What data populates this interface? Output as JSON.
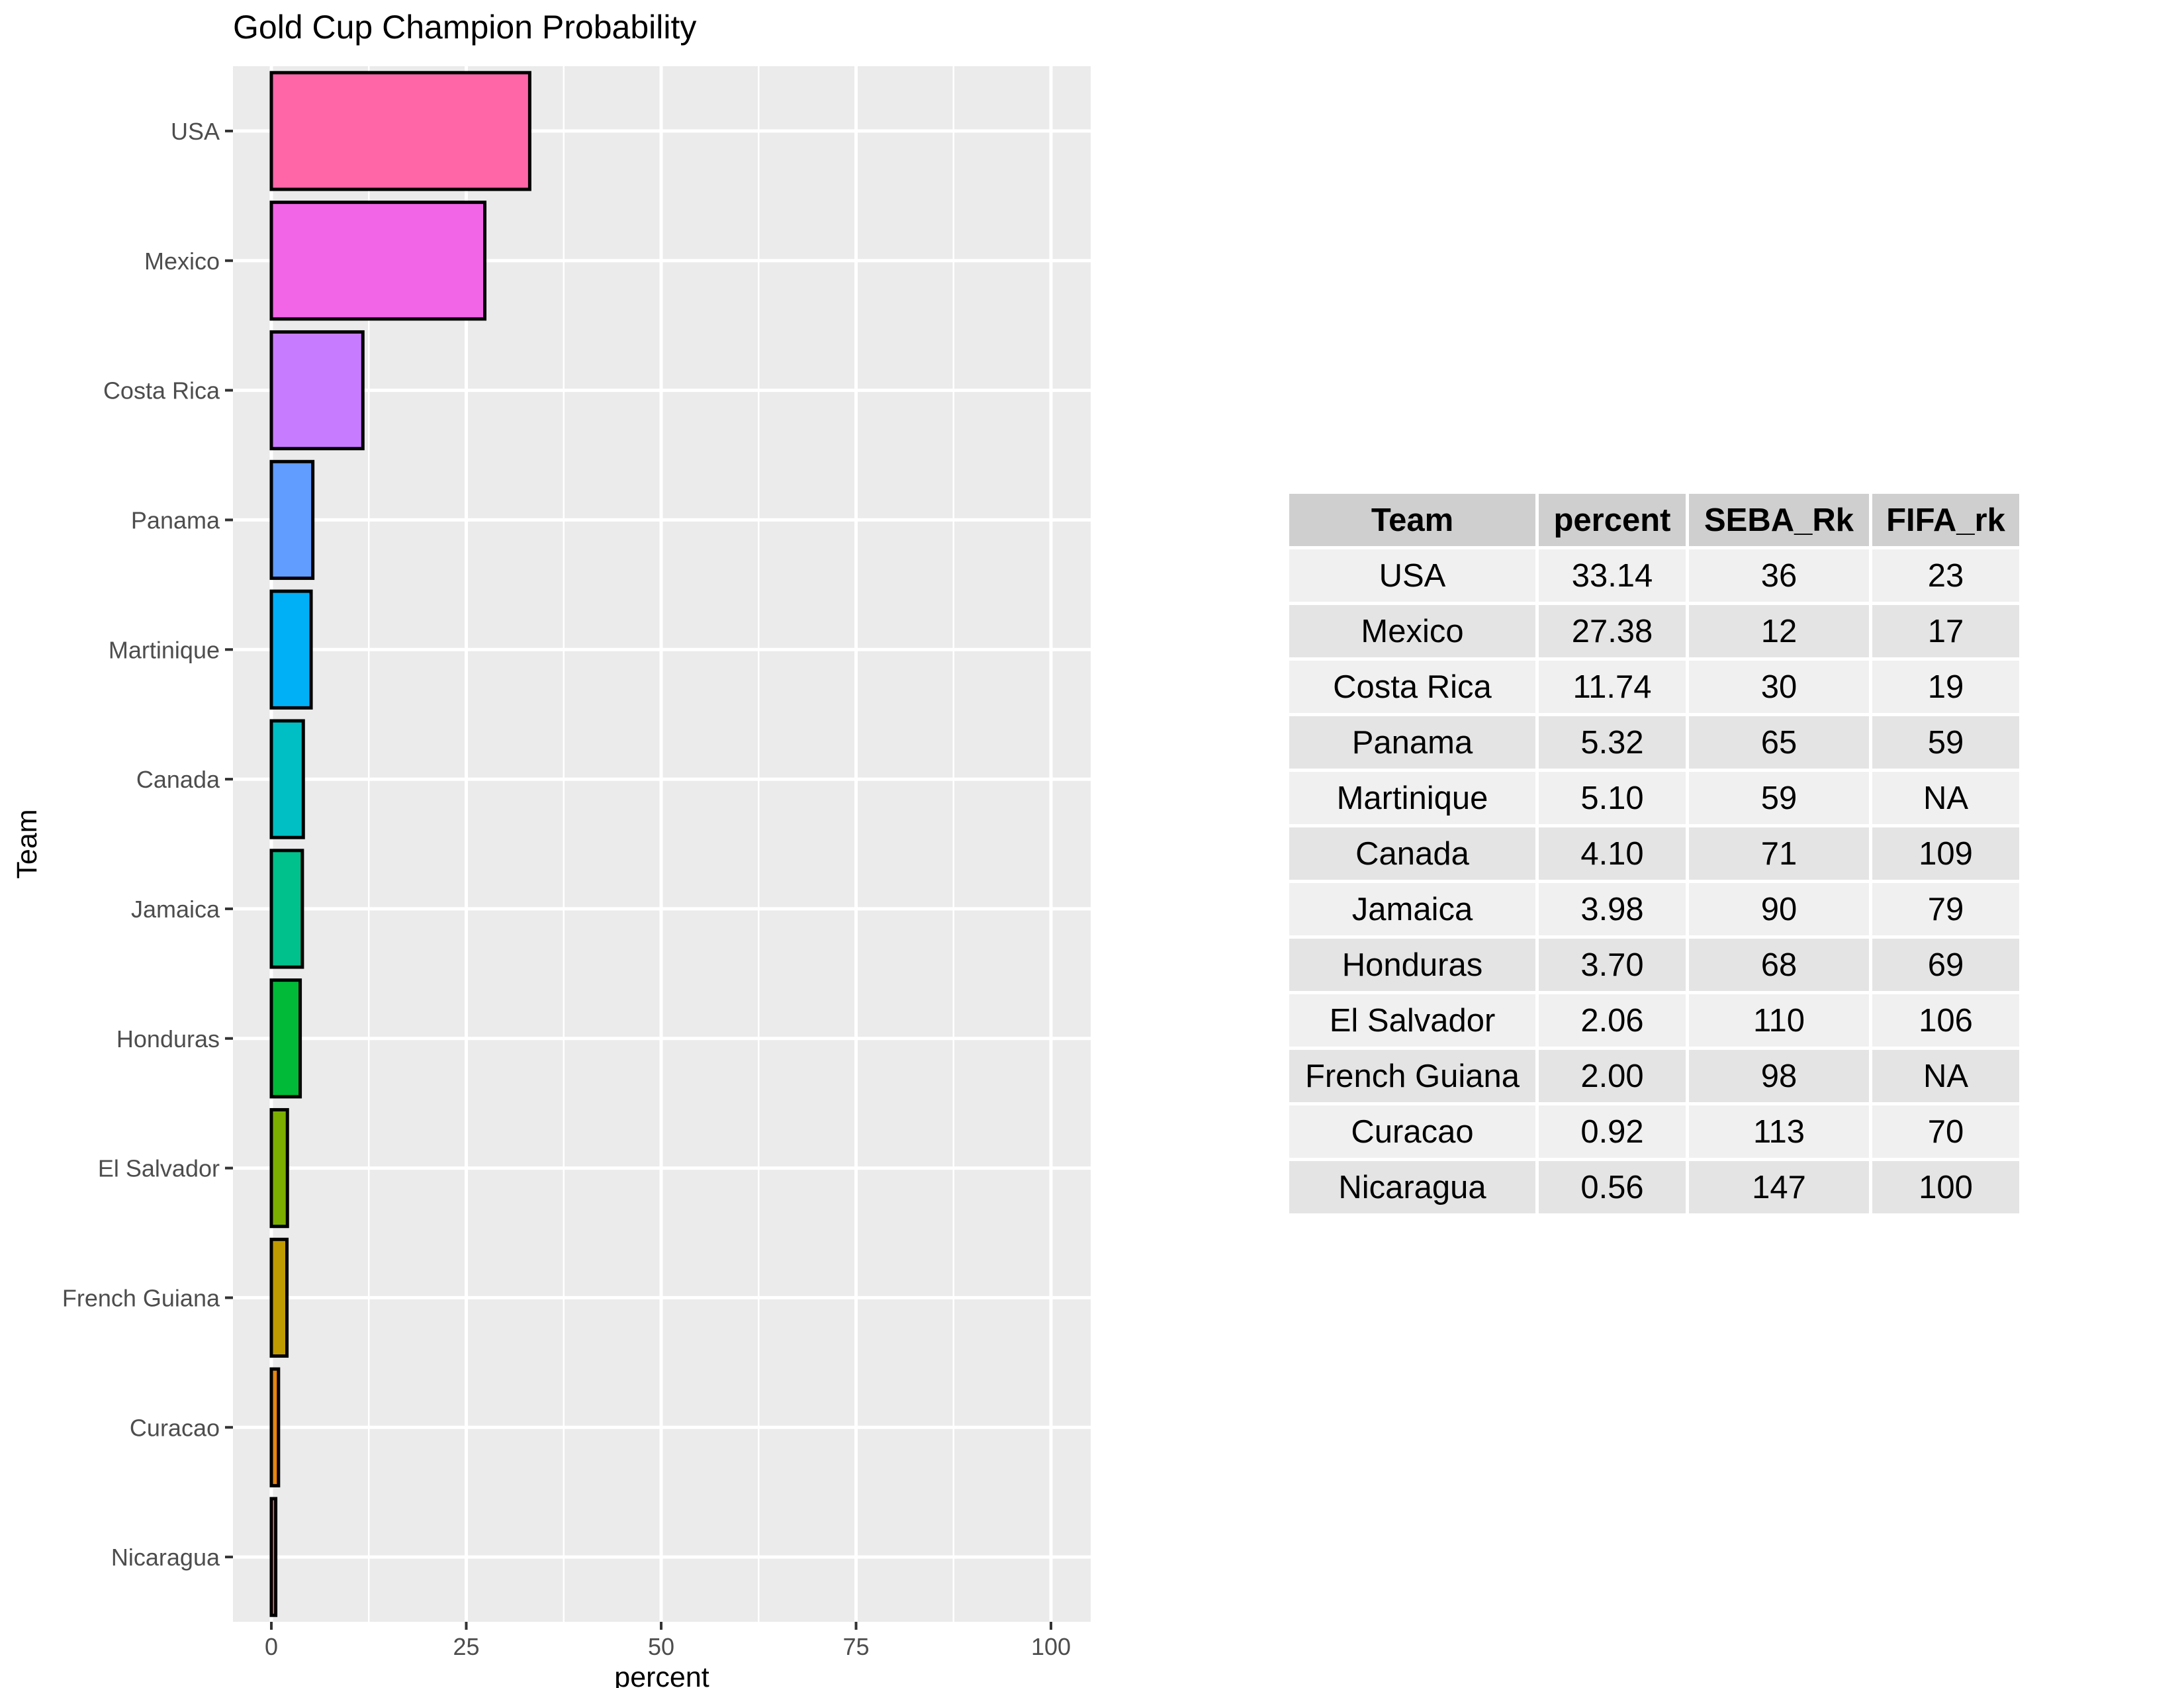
{
  "chart_data": {
    "type": "bar",
    "orientation": "horizontal",
    "title": "Gold Cup Champion Probability",
    "xlabel": "percent",
    "ylabel": "Team",
    "xlim": [
      0,
      100
    ],
    "xticks": [
      0,
      25,
      50,
      75,
      100
    ],
    "grid": true,
    "categories": [
      "USA",
      "Mexico",
      "Costa Rica",
      "Panama",
      "Martinique",
      "Canada",
      "Jamaica",
      "Honduras",
      "El Salvador",
      "French Guiana",
      "Curacao",
      "Nicaragua"
    ],
    "values": [
      33.14,
      27.38,
      11.74,
      5.32,
      5.1,
      4.1,
      3.98,
      3.7,
      2.06,
      2.0,
      0.92,
      0.56
    ],
    "colors": [
      "#FF66A8",
      "#F265E7",
      "#C77CFF",
      "#619CFF",
      "#00B0F6",
      "#00BFC4",
      "#00C08B",
      "#00BA38",
      "#7CAE00",
      "#C09B00",
      "#E68613",
      "#F8766D"
    ]
  },
  "table": {
    "columns": [
      "Team",
      "percent",
      "SEBA_Rk",
      "FIFA_rk"
    ],
    "rows": [
      [
        "USA",
        "33.14",
        "36",
        "23"
      ],
      [
        "Mexico",
        "27.38",
        "12",
        "17"
      ],
      [
        "Costa Rica",
        "11.74",
        "30",
        "19"
      ],
      [
        "Panama",
        "5.32",
        "65",
        "59"
      ],
      [
        "Martinique",
        "5.10",
        "59",
        "NA"
      ],
      [
        "Canada",
        "4.10",
        "71",
        "109"
      ],
      [
        "Jamaica",
        "3.98",
        "90",
        "79"
      ],
      [
        "Honduras",
        "3.70",
        "68",
        "69"
      ],
      [
        "El Salvador",
        "2.06",
        "110",
        "106"
      ],
      [
        "French Guiana",
        "2.00",
        "98",
        "NA"
      ],
      [
        "Curacao",
        "0.92",
        "113",
        "70"
      ],
      [
        "Nicaragua",
        "0.56",
        "147",
        "100"
      ]
    ]
  }
}
